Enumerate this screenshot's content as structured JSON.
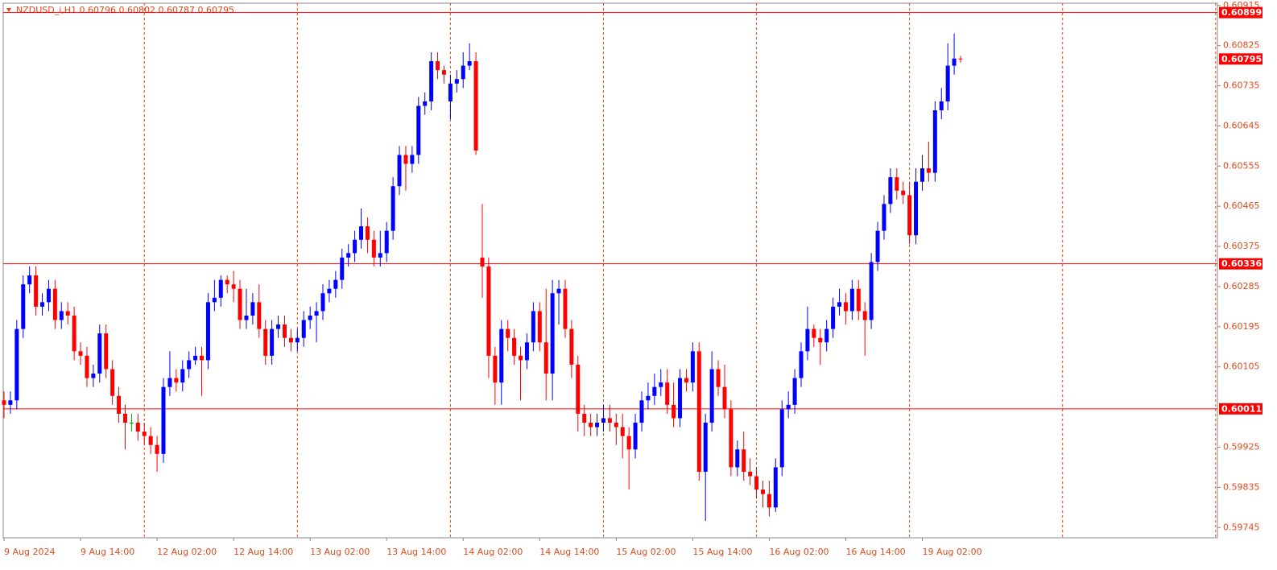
{
  "chart_data": {
    "type": "candlestick",
    "title": "NZDUSD_i,H1  0.60796 0.60802 0.60787 0.60795",
    "categories": [
      "9 Aug 2024",
      null,
      null,
      null,
      null,
      null,
      null,
      null,
      null,
      null,
      null,
      null,
      "9 Aug 14:00",
      null,
      null,
      null,
      null,
      null,
      null,
      null,
      null,
      null,
      null,
      null,
      "12 Aug 02:00",
      null,
      null,
      null,
      null,
      null,
      null,
      null,
      null,
      null,
      null,
      null,
      "12 Aug 14:00",
      null,
      null,
      null,
      null,
      null,
      null,
      null,
      null,
      null,
      null,
      null,
      "13 Aug 02:00",
      null,
      null,
      null,
      null,
      null,
      null,
      null,
      null,
      null,
      null,
      null,
      "13 Aug 14:00",
      null,
      null,
      null,
      null,
      null,
      null,
      null,
      null,
      null,
      null,
      null,
      "14 Aug 02:00",
      null,
      null,
      null,
      null,
      null,
      null,
      null,
      null,
      null,
      null,
      null,
      "14 Aug 14:00",
      null,
      null,
      null,
      null,
      null,
      null,
      null,
      null,
      null,
      null,
      null,
      "15 Aug 02:00",
      null,
      null,
      null,
      null,
      null,
      null,
      null,
      null,
      null,
      null,
      null,
      "15 Aug 14:00",
      null,
      null,
      null,
      null,
      null,
      null,
      null,
      null,
      null,
      null,
      null,
      "16 Aug 02:00",
      null,
      null,
      null,
      null,
      null,
      null,
      null,
      null,
      null,
      null,
      null,
      "16 Aug 14:00",
      null,
      null,
      null,
      null,
      null,
      null,
      null,
      null,
      null,
      null,
      null,
      "19 Aug 02:00",
      null,
      null,
      null,
      null,
      null,
      null
    ],
    "open": [
      0.6003,
      0.6002,
      0.6003,
      0.6019,
      0.6029,
      0.6031,
      0.6024,
      0.6025,
      0.6028,
      0.6021,
      0.6023,
      0.6022,
      0.6014,
      0.6013,
      0.6008,
      0.6009,
      0.6018,
      0.601,
      0.6004,
      0.6,
      0.5998,
      0.5998,
      0.5996,
      0.5995,
      0.5993,
      0.5991,
      0.6006,
      0.6008,
      0.6007,
      0.601,
      0.6012,
      0.6013,
      0.6012,
      0.6025,
      0.6026,
      0.603,
      0.6029,
      0.6028,
      0.6021,
      0.6022,
      0.6025,
      0.6019,
      0.6013,
      0.6019,
      0.602,
      0.6017,
      0.6016,
      0.6017,
      0.6021,
      0.6022,
      0.6023,
      0.6027,
      0.6028,
      0.603,
      0.6035,
      0.6036,
      0.6039,
      0.6042,
      0.6039,
      0.6035,
      0.6036,
      0.6041,
      0.6051,
      0.6058,
      0.6056,
      0.6058,
      0.6069,
      0.607,
      0.6079,
      0.6077,
      0.607,
      0.6074,
      0.6075,
      0.6078,
      0.6079,
      0.6035,
      0.6033,
      0.6013,
      0.6007,
      0.6019,
      0.6017,
      0.6013,
      0.6012,
      0.6016,
      0.6023,
      0.6016,
      0.6009,
      0.6027,
      0.6028,
      0.6019,
      0.6011,
      0.6,
      0.5998,
      0.5997,
      0.5998,
      0.5999,
      0.5998,
      0.5997,
      0.5995,
      0.5992,
      0.5998,
      0.6003,
      0.6004,
      0.6006,
      0.6007,
      0.6002,
      0.5999,
      0.6008,
      0.6007,
      0.6014,
      0.5987,
      0.5998,
      0.601,
      0.6006,
      0.6001,
      0.5988,
      0.5992,
      0.5987,
      0.5986,
      0.5983,
      0.5982,
      0.5979,
      0.5988,
      0.6001,
      0.6002,
      0.6008,
      0.6014,
      0.6019,
      0.6017,
      0.6016,
      0.6019,
      0.6024,
      0.6025,
      0.6023,
      0.6028,
      0.6023,
      0.6021,
      0.6034,
      0.6041,
      0.6047,
      0.6053,
      0.605,
      0.6049,
      0.604,
      0.6052,
      0.6055,
      0.6054,
      0.6068,
      0.607,
      0.6078,
      0.60796
    ],
    "high": [
      0.6005,
      0.6005,
      0.6021,
      0.6031,
      0.6033,
      0.6033,
      0.6027,
      0.603,
      0.603,
      0.6025,
      0.6025,
      0.6024,
      0.6016,
      0.6015,
      0.6011,
      0.602,
      0.602,
      0.6012,
      0.6006,
      0.6002,
      0.6,
      0.6,
      0.5998,
      0.5997,
      0.5995,
      0.6008,
      0.6014,
      0.601,
      0.6012,
      0.6014,
      0.6015,
      0.6015,
      0.6027,
      0.603,
      0.6031,
      0.6031,
      0.6032,
      0.603,
      0.6028,
      0.6027,
      0.6029,
      0.6021,
      0.6021,
      0.6022,
      0.6022,
      0.6019,
      0.6019,
      0.6023,
      0.6024,
      0.6025,
      0.6029,
      0.603,
      0.6032,
      0.6037,
      0.6038,
      0.6041,
      0.6046,
      0.6044,
      0.6041,
      0.6041,
      0.6043,
      0.6053,
      0.606,
      0.606,
      0.606,
      0.6071,
      0.6072,
      0.6081,
      0.6081,
      0.6078,
      0.6076,
      0.6077,
      0.6081,
      0.6083,
      0.6081,
      0.6047,
      0.6035,
      0.6015,
      0.6021,
      0.6021,
      0.6019,
      0.6015,
      0.6018,
      0.6025,
      0.6025,
      0.6028,
      0.603,
      0.603,
      0.603,
      0.6021,
      0.6013,
      0.6002,
      0.6,
      0.6,
      0.6002,
      0.6002,
      0.6,
      0.6,
      0.5997,
      0.6,
      0.6005,
      0.6007,
      0.6009,
      0.601,
      0.601,
      0.6007,
      0.601,
      0.601,
      0.6016,
      0.6016,
      0.6,
      0.6014,
      0.6012,
      0.6011,
      0.6003,
      0.5994,
      0.5996,
      0.599,
      0.5988,
      0.5985,
      0.5985,
      0.599,
      0.6003,
      0.6005,
      0.601,
      0.6016,
      0.6024,
      0.602,
      0.6019,
      0.6021,
      0.6026,
      0.6028,
      0.6027,
      0.603,
      0.603,
      0.6025,
      0.6036,
      0.6043,
      0.6049,
      0.6055,
      0.6055,
      0.6052,
      0.6052,
      0.6055,
      0.6058,
      0.6061,
      0.607,
      0.6073,
      0.6083,
      0.60852,
      0.60802
    ],
    "low": [
      0.5999,
      0.6,
      0.6001,
      0.6017,
      0.6027,
      0.6022,
      0.6022,
      0.6023,
      0.6019,
      0.6019,
      0.602,
      0.6012,
      0.6011,
      0.6006,
      0.6006,
      0.6007,
      0.6008,
      0.6002,
      0.5998,
      0.5992,
      0.5996,
      0.5994,
      0.5993,
      0.5991,
      0.5987,
      0.5989,
      0.6004,
      0.6005,
      0.6005,
      0.6008,
      0.6011,
      0.6004,
      0.601,
      0.6023,
      0.6024,
      0.6027,
      0.6025,
      0.6019,
      0.6019,
      0.602,
      0.6017,
      0.6011,
      0.6011,
      0.6017,
      0.6015,
      0.6014,
      0.6014,
      0.6015,
      0.6019,
      0.6016,
      0.6021,
      0.6025,
      0.6026,
      0.6028,
      0.6033,
      0.6034,
      0.6037,
      0.6036,
      0.6033,
      0.6033,
      0.6034,
      0.6039,
      0.6049,
      0.605,
      0.6054,
      0.6056,
      0.6067,
      0.6068,
      0.6075,
      0.6074,
      0.6066,
      0.6072,
      0.6073,
      0.6077,
      0.6058,
      0.6026,
      0.6008,
      0.6002,
      0.6002,
      0.6014,
      0.6011,
      0.6003,
      0.601,
      0.6014,
      0.6014,
      0.6003,
      0.6003,
      0.602,
      0.6017,
      0.6008,
      0.5996,
      0.5995,
      0.5995,
      0.5995,
      0.5996,
      0.5996,
      0.5993,
      0.599,
      0.5983,
      0.599,
      0.5996,
      0.6001,
      0.6002,
      0.6004,
      0.6,
      0.5997,
      0.5997,
      0.6005,
      0.6005,
      0.5985,
      0.5976,
      0.5996,
      0.6004,
      0.5999,
      0.5986,
      0.5986,
      0.5985,
      0.5984,
      0.5981,
      0.5979,
      0.5977,
      0.5978,
      0.5986,
      0.5999,
      0.6,
      0.6006,
      0.6012,
      0.6015,
      0.6011,
      0.6014,
      0.6017,
      0.6022,
      0.602,
      0.6021,
      0.6021,
      0.6013,
      0.6019,
      0.6032,
      0.6039,
      0.6045,
      0.6048,
      0.6047,
      0.6038,
      0.6038,
      0.605,
      0.6052,
      0.6052,
      0.6066,
      0.6068,
      0.6076,
      0.60787
    ],
    "close": [
      0.6002,
      0.6003,
      0.6019,
      0.6029,
      0.6031,
      0.6024,
      0.6025,
      0.6028,
      0.6021,
      0.6023,
      0.6022,
      0.6014,
      0.6013,
      0.6008,
      0.6009,
      0.6018,
      0.601,
      0.6004,
      0.6,
      0.5998,
      0.5998,
      0.5996,
      0.5995,
      0.5993,
      0.5991,
      0.6006,
      0.6008,
      0.6007,
      0.601,
      0.6012,
      0.6013,
      0.6012,
      0.6025,
      0.6026,
      0.603,
      0.6029,
      0.6028,
      0.6021,
      0.6022,
      0.6025,
      0.6019,
      0.6013,
      0.6019,
      0.602,
      0.6017,
      0.6016,
      0.6017,
      0.6021,
      0.6022,
      0.6023,
      0.6027,
      0.6028,
      0.603,
      0.6035,
      0.6036,
      0.6039,
      0.6042,
      0.6039,
      0.6035,
      0.6036,
      0.6041,
      0.6051,
      0.6058,
      0.6056,
      0.6058,
      0.6069,
      0.607,
      0.6079,
      0.6077,
      0.6076,
      0.6074,
      0.6075,
      0.6078,
      0.6079,
      0.6059,
      0.6033,
      0.6013,
      0.6007,
      0.6019,
      0.6017,
      0.6013,
      0.6012,
      0.6016,
      0.6023,
      0.6016,
      0.6009,
      0.6027,
      0.6028,
      0.6019,
      0.6011,
      0.6,
      0.5998,
      0.5997,
      0.5998,
      0.5999,
      0.5998,
      0.5997,
      0.5995,
      0.5992,
      0.5998,
      0.6003,
      0.6004,
      0.6006,
      0.6007,
      0.6002,
      0.5999,
      0.6008,
      0.6007,
      0.6014,
      0.5987,
      0.5998,
      0.601,
      0.6006,
      0.6001,
      0.5988,
      0.5992,
      0.5987,
      0.5986,
      0.5983,
      0.5982,
      0.5979,
      0.5988,
      0.6001,
      0.6002,
      0.6008,
      0.6014,
      0.6019,
      0.6017,
      0.6016,
      0.6019,
      0.6024,
      0.6025,
      0.6023,
      0.6028,
      0.6023,
      0.6021,
      0.6034,
      0.6041,
      0.6047,
      0.6053,
      0.605,
      0.6049,
      0.604,
      0.6052,
      0.6055,
      0.6054,
      0.6068,
      0.607,
      0.6078,
      0.60796,
      0.60795
    ],
    "up_color": "#0000ff",
    "down_color": "#ff0000",
    "doji_color": "#00a000",
    "ylim": [
      0.59722,
      0.6092
    ],
    "yticks": [
      0.60915,
      0.60825,
      0.60735,
      0.60645,
      0.60555,
      0.60465,
      0.60375,
      0.60285,
      0.60195,
      0.60105,
      0.59925,
      0.59835,
      0.59745
    ],
    "hlines": [
      0.60899,
      0.60336,
      0.60011
    ],
    "hline_color": "#ff0000"
  }
}
